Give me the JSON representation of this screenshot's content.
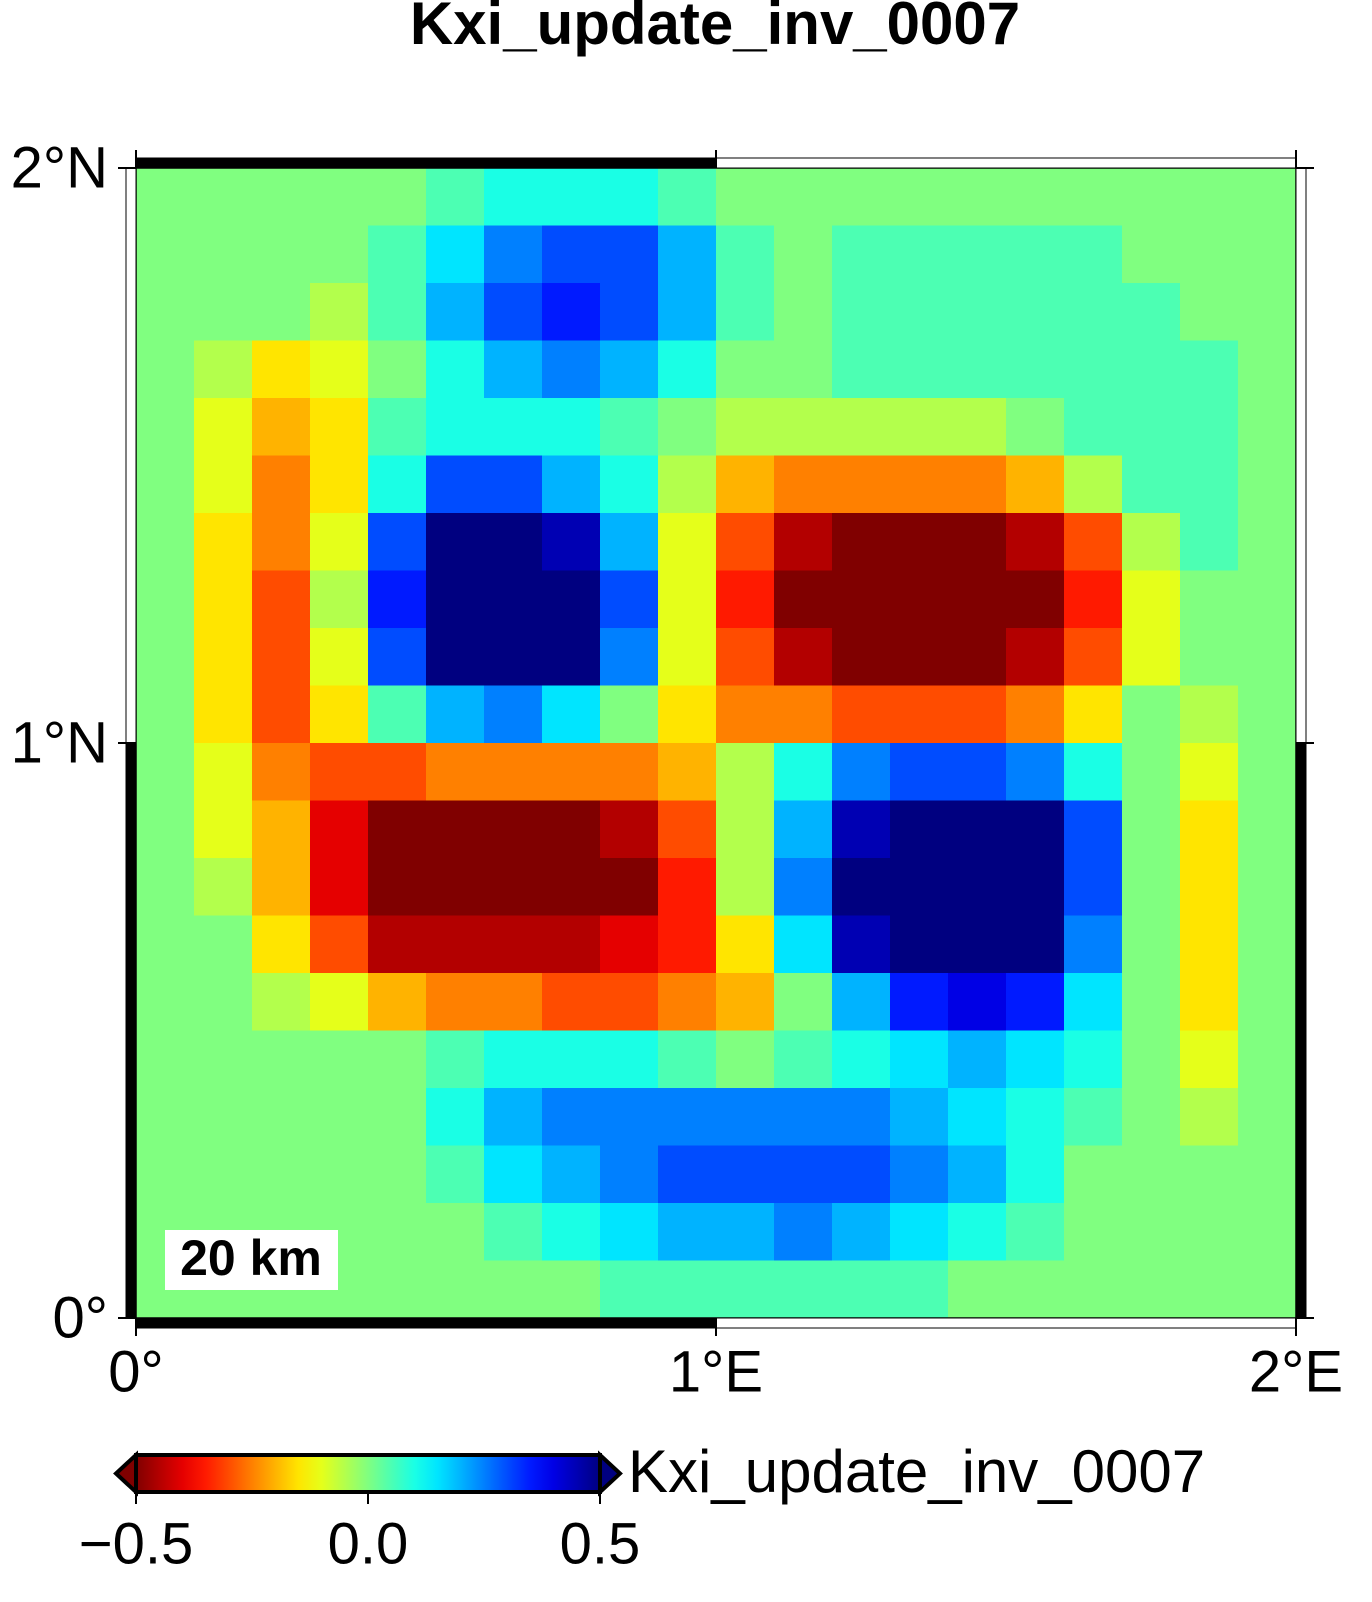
{
  "chart_data": {
    "type": "heatmap",
    "title": "Kxi_update_inv_0007",
    "xlim": [
      0,
      2
    ],
    "ylim": [
      0,
      2
    ],
    "xticks": [
      {
        "value": 0,
        "label": "0°"
      },
      {
        "value": 1,
        "label": "1°E"
      },
      {
        "value": 2,
        "label": "2°E"
      }
    ],
    "yticks": [
      {
        "value": 0,
        "label": "0°"
      },
      {
        "value": 1,
        "label": "1°N"
      },
      {
        "value": 2,
        "label": "2°N"
      }
    ],
    "colormap": "jet_r",
    "scale_bar": "20 km",
    "values": [
      [
        0,
        0,
        0,
        0,
        0,
        0.05,
        0.1,
        0.1,
        0.1,
        0.05,
        0,
        0,
        0,
        0,
        0,
        0,
        0,
        0,
        0,
        0
      ],
      [
        0,
        0,
        0,
        0,
        0.05,
        0.15,
        0.25,
        0.3,
        0.3,
        0.2,
        0.05,
        0,
        0.05,
        0.05,
        0.05,
        0.05,
        0.05,
        0,
        0,
        0
      ],
      [
        0,
        0,
        0,
        -0.05,
        0.05,
        0.2,
        0.3,
        0.35,
        0.3,
        0.2,
        0.05,
        0,
        0.05,
        0.05,
        0.05,
        0.05,
        0.05,
        0.05,
        0,
        0
      ],
      [
        0,
        -0.05,
        -0.15,
        -0.1,
        0,
        0.1,
        0.2,
        0.25,
        0.2,
        0.1,
        0,
        0,
        0.05,
        0.05,
        0.05,
        0.05,
        0.05,
        0.05,
        0.05,
        0
      ],
      [
        0,
        -0.1,
        -0.2,
        -0.15,
        0.05,
        0.1,
        0.1,
        0.1,
        0.05,
        0,
        -0.05,
        -0.05,
        -0.05,
        -0.05,
        -0.05,
        0,
        0.05,
        0.05,
        0.05,
        0
      ],
      [
        0,
        -0.1,
        -0.25,
        -0.15,
        0.1,
        0.3,
        0.3,
        0.2,
        0.1,
        -0.05,
        -0.2,
        -0.25,
        -0.25,
        -0.25,
        -0.25,
        -0.2,
        -0.05,
        0.05,
        0.05,
        0
      ],
      [
        0,
        -0.15,
        -0.25,
        -0.1,
        0.3,
        0.5,
        0.5,
        0.45,
        0.2,
        -0.1,
        -0.3,
        -0.45,
        -0.5,
        -0.5,
        -0.5,
        -0.45,
        -0.3,
        -0.05,
        0.05,
        0
      ],
      [
        0,
        -0.15,
        -0.3,
        -0.05,
        0.35,
        0.5,
        0.5,
        0.5,
        0.3,
        -0.1,
        -0.35,
        -0.5,
        -0.5,
        -0.5,
        -0.5,
        -0.5,
        -0.35,
        -0.1,
        0,
        0
      ],
      [
        0,
        -0.15,
        -0.3,
        -0.1,
        0.3,
        0.5,
        0.5,
        0.5,
        0.25,
        -0.1,
        -0.3,
        -0.45,
        -0.5,
        -0.5,
        -0.5,
        -0.45,
        -0.3,
        -0.1,
        0,
        0
      ],
      [
        0,
        -0.15,
        -0.3,
        -0.15,
        0.05,
        0.2,
        0.25,
        0.15,
        0,
        -0.15,
        -0.25,
        -0.25,
        -0.3,
        -0.3,
        -0.3,
        -0.25,
        -0.15,
        0,
        -0.05,
        0
      ],
      [
        0,
        -0.1,
        -0.25,
        -0.3,
        -0.3,
        -0.25,
        -0.25,
        -0.25,
        -0.25,
        -0.2,
        -0.05,
        0.1,
        0.25,
        0.3,
        0.3,
        0.25,
        0.1,
        0,
        -0.1,
        0
      ],
      [
        0,
        -0.1,
        -0.2,
        -0.4,
        -0.5,
        -0.5,
        -0.5,
        -0.5,
        -0.45,
        -0.3,
        -0.05,
        0.2,
        0.45,
        0.5,
        0.5,
        0.5,
        0.3,
        0,
        -0.15,
        0
      ],
      [
        0,
        -0.05,
        -0.2,
        -0.4,
        -0.5,
        -0.5,
        -0.5,
        -0.5,
        -0.5,
        -0.35,
        -0.05,
        0.25,
        0.5,
        0.5,
        0.5,
        0.5,
        0.3,
        0,
        -0.15,
        0
      ],
      [
        0,
        0,
        -0.15,
        -0.3,
        -0.45,
        -0.45,
        -0.45,
        -0.45,
        -0.4,
        -0.35,
        -0.15,
        0.15,
        0.45,
        0.5,
        0.5,
        0.5,
        0.25,
        0,
        -0.15,
        0
      ],
      [
        0,
        0,
        -0.05,
        -0.1,
        -0.2,
        -0.25,
        -0.25,
        -0.3,
        -0.3,
        -0.25,
        -0.2,
        0,
        0.2,
        0.35,
        0.4,
        0.35,
        0.15,
        0,
        -0.15,
        0
      ],
      [
        0,
        0,
        0,
        0,
        0,
        0.05,
        0.1,
        0.1,
        0.1,
        0.05,
        0,
        0.05,
        0.1,
        0.15,
        0.2,
        0.15,
        0.1,
        0,
        -0.1,
        0
      ],
      [
        0,
        0,
        0,
        0,
        0,
        0.1,
        0.2,
        0.25,
        0.25,
        0.25,
        0.25,
        0.25,
        0.25,
        0.2,
        0.15,
        0.1,
        0.05,
        0,
        -0.05,
        0
      ],
      [
        0,
        0,
        0,
        0,
        0,
        0.05,
        0.15,
        0.2,
        0.25,
        0.3,
        0.3,
        0.3,
        0.3,
        0.25,
        0.2,
        0.1,
        0,
        0,
        0,
        0
      ],
      [
        0,
        0,
        0,
        0,
        0,
        0,
        0.05,
        0.1,
        0.15,
        0.2,
        0.2,
        0.25,
        0.2,
        0.15,
        0.1,
        0.05,
        0,
        0,
        0,
        0
      ],
      [
        0,
        0,
        0,
        0,
        0,
        0,
        0,
        0,
        0.05,
        0.05,
        0.05,
        0.05,
        0.05,
        0.05,
        0,
        0,
        0,
        0,
        0,
        0
      ]
    ],
    "colorbar": {
      "label": "Kxi_update_inv_0007",
      "lim": [
        -0.5,
        0.5
      ],
      "ticks": [
        {
          "value": -0.5,
          "label": "−0.5"
        },
        {
          "value": 0,
          "label": "0.0"
        },
        {
          "value": 0.5,
          "label": "0.5"
        }
      ]
    }
  }
}
